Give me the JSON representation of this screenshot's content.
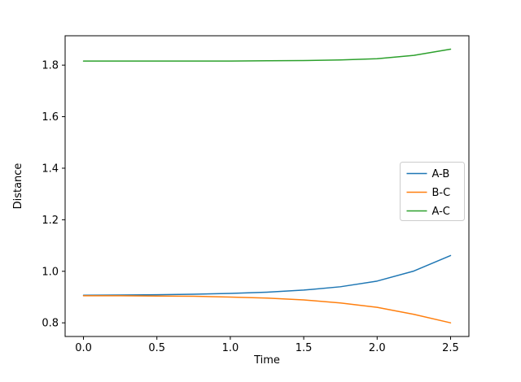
{
  "chart_data": {
    "type": "line",
    "title": "",
    "xlabel": "Time",
    "ylabel": "Distance",
    "xlim": [
      -0.125,
      2.625
    ],
    "ylim": [
      0.747,
      1.914
    ],
    "xticks": [
      0.0,
      0.5,
      1.0,
      1.5,
      2.0,
      2.5
    ],
    "xtick_labels": [
      "0.0",
      "0.5",
      "1.0",
      "1.5",
      "2.0",
      "2.5"
    ],
    "yticks": [
      0.8,
      1.0,
      1.2,
      1.4,
      1.6,
      1.8
    ],
    "ytick_labels": [
      "0.8",
      "1.0",
      "1.2",
      "1.4",
      "1.6",
      "1.8"
    ],
    "x": [
      0.0,
      0.25,
      0.5,
      0.75,
      1.0,
      1.25,
      1.5,
      1.75,
      2.0,
      2.25,
      2.5
    ],
    "series": [
      {
        "name": "A-B",
        "color": "#1f77b4",
        "values": [
          0.907,
          0.908,
          0.909,
          0.911,
          0.914,
          0.919,
          0.927,
          0.94,
          0.962,
          1.001,
          1.061
        ]
      },
      {
        "name": "B-C",
        "color": "#ff7f0e",
        "values": [
          0.905,
          0.905,
          0.904,
          0.903,
          0.9,
          0.896,
          0.889,
          0.877,
          0.86,
          0.833,
          0.8
        ]
      },
      {
        "name": "A-C",
        "color": "#2ca02c",
        "values": [
          1.816,
          1.816,
          1.816,
          1.816,
          1.816,
          1.817,
          1.818,
          1.82,
          1.825,
          1.838,
          1.862
        ]
      }
    ],
    "legend": {
      "position": "center right",
      "labels": [
        "A-B",
        "B-C",
        "A-C"
      ]
    },
    "grid": false,
    "colors": {
      "spine": "#000000",
      "background": "#ffffff"
    }
  }
}
